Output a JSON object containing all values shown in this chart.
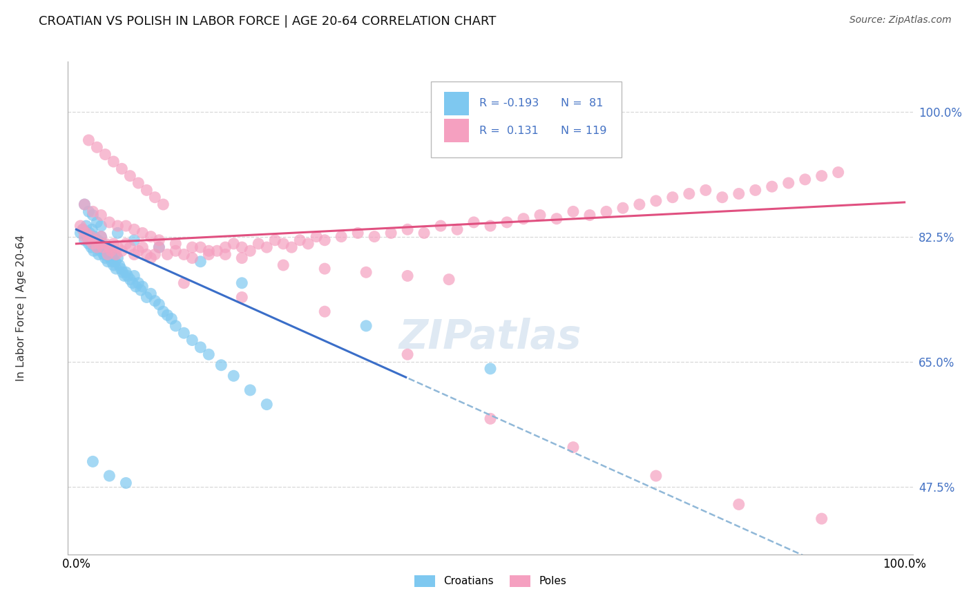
{
  "title": "CROATIAN VS POLISH IN LABOR FORCE | AGE 20-64 CORRELATION CHART",
  "source": "Source: ZipAtlas.com",
  "ylabel": "In Labor Force | Age 20-64",
  "ytick_values": [
    0.475,
    0.65,
    0.825,
    1.0
  ],
  "ytick_labels": [
    "47.5%",
    "65.0%",
    "82.5%",
    "100.0%"
  ],
  "xlim": [
    -0.01,
    1.01
  ],
  "ylim": [
    0.38,
    1.07
  ],
  "croatian_color": "#7ec8f0",
  "polish_color": "#f5a0c0",
  "croatian_trend_color": "#3a6ec8",
  "polish_trend_color": "#e05080",
  "dashed_color": "#90b8d8",
  "croatian_R": -0.193,
  "croatian_N": 81,
  "polish_R": 0.131,
  "polish_N": 119,
  "legend_labels": [
    "Croatians",
    "Poles"
  ],
  "watermark": "ZIPatlas",
  "grid_color": "#d8d8d8",
  "title_fontsize": 13,
  "source_fontsize": 10,
  "tick_fontsize": 12,
  "legend_fontsize": 11,
  "croatian_x": [
    0.005,
    0.008,
    0.01,
    0.012,
    0.013,
    0.015,
    0.016,
    0.018,
    0.019,
    0.02,
    0.021,
    0.022,
    0.023,
    0.025,
    0.026,
    0.027,
    0.028,
    0.029,
    0.03,
    0.031,
    0.032,
    0.033,
    0.034,
    0.035,
    0.036,
    0.037,
    0.038,
    0.04,
    0.041,
    0.042,
    0.043,
    0.044,
    0.045,
    0.046,
    0.047,
    0.048,
    0.05,
    0.052,
    0.054,
    0.056,
    0.058,
    0.06,
    0.062,
    0.065,
    0.068,
    0.07,
    0.072,
    0.075,
    0.078,
    0.08,
    0.085,
    0.09,
    0.095,
    0.1,
    0.105,
    0.11,
    0.115,
    0.12,
    0.13,
    0.14,
    0.15,
    0.16,
    0.175,
    0.19,
    0.21,
    0.23,
    0.01,
    0.015,
    0.02,
    0.025,
    0.03,
    0.05,
    0.07,
    0.1,
    0.15,
    0.2,
    0.35,
    0.5,
    0.02,
    0.04,
    0.06
  ],
  "croatian_y": [
    0.83,
    0.835,
    0.82,
    0.84,
    0.825,
    0.815,
    0.83,
    0.81,
    0.835,
    0.82,
    0.805,
    0.825,
    0.815,
    0.81,
    0.82,
    0.8,
    0.815,
    0.805,
    0.825,
    0.81,
    0.815,
    0.8,
    0.805,
    0.795,
    0.81,
    0.8,
    0.79,
    0.805,
    0.795,
    0.8,
    0.79,
    0.795,
    0.785,
    0.8,
    0.79,
    0.78,
    0.795,
    0.785,
    0.78,
    0.775,
    0.77,
    0.775,
    0.77,
    0.765,
    0.76,
    0.77,
    0.755,
    0.76,
    0.75,
    0.755,
    0.74,
    0.745,
    0.735,
    0.73,
    0.72,
    0.715,
    0.71,
    0.7,
    0.69,
    0.68,
    0.67,
    0.66,
    0.645,
    0.63,
    0.61,
    0.59,
    0.87,
    0.86,
    0.855,
    0.845,
    0.84,
    0.83,
    0.82,
    0.81,
    0.79,
    0.76,
    0.7,
    0.64,
    0.51,
    0.49,
    0.48
  ],
  "polish_x": [
    0.005,
    0.008,
    0.01,
    0.012,
    0.015,
    0.018,
    0.02,
    0.022,
    0.025,
    0.028,
    0.03,
    0.032,
    0.035,
    0.038,
    0.04,
    0.042,
    0.045,
    0.048,
    0.05,
    0.055,
    0.06,
    0.065,
    0.07,
    0.075,
    0.08,
    0.085,
    0.09,
    0.095,
    0.1,
    0.11,
    0.12,
    0.13,
    0.14,
    0.15,
    0.16,
    0.17,
    0.18,
    0.19,
    0.2,
    0.21,
    0.22,
    0.23,
    0.24,
    0.25,
    0.26,
    0.27,
    0.28,
    0.29,
    0.3,
    0.32,
    0.34,
    0.36,
    0.38,
    0.4,
    0.42,
    0.44,
    0.46,
    0.48,
    0.5,
    0.52,
    0.54,
    0.56,
    0.58,
    0.6,
    0.62,
    0.64,
    0.66,
    0.68,
    0.7,
    0.72,
    0.74,
    0.76,
    0.78,
    0.8,
    0.82,
    0.84,
    0.86,
    0.88,
    0.9,
    0.92,
    0.01,
    0.02,
    0.03,
    0.04,
    0.05,
    0.06,
    0.07,
    0.08,
    0.09,
    0.1,
    0.12,
    0.14,
    0.16,
    0.18,
    0.2,
    0.25,
    0.3,
    0.35,
    0.4,
    0.45,
    0.015,
    0.025,
    0.035,
    0.045,
    0.055,
    0.065,
    0.075,
    0.085,
    0.095,
    0.105,
    0.13,
    0.2,
    0.3,
    0.4,
    0.5,
    0.6,
    0.7,
    0.8,
    0.9
  ],
  "polish_y": [
    0.84,
    0.835,
    0.825,
    0.83,
    0.82,
    0.825,
    0.815,
    0.82,
    0.81,
    0.815,
    0.825,
    0.81,
    0.815,
    0.8,
    0.81,
    0.805,
    0.815,
    0.8,
    0.81,
    0.805,
    0.815,
    0.81,
    0.8,
    0.805,
    0.81,
    0.8,
    0.795,
    0.8,
    0.81,
    0.8,
    0.805,
    0.8,
    0.795,
    0.81,
    0.8,
    0.805,
    0.81,
    0.815,
    0.81,
    0.805,
    0.815,
    0.81,
    0.82,
    0.815,
    0.81,
    0.82,
    0.815,
    0.825,
    0.82,
    0.825,
    0.83,
    0.825,
    0.83,
    0.835,
    0.83,
    0.84,
    0.835,
    0.845,
    0.84,
    0.845,
    0.85,
    0.855,
    0.85,
    0.86,
    0.855,
    0.86,
    0.865,
    0.87,
    0.875,
    0.88,
    0.885,
    0.89,
    0.88,
    0.885,
    0.89,
    0.895,
    0.9,
    0.905,
    0.91,
    0.915,
    0.87,
    0.86,
    0.855,
    0.845,
    0.84,
    0.84,
    0.835,
    0.83,
    0.825,
    0.82,
    0.815,
    0.81,
    0.805,
    0.8,
    0.795,
    0.785,
    0.78,
    0.775,
    0.77,
    0.765,
    0.96,
    0.95,
    0.94,
    0.93,
    0.92,
    0.91,
    0.9,
    0.89,
    0.88,
    0.87,
    0.76,
    0.74,
    0.72,
    0.66,
    0.57,
    0.53,
    0.49,
    0.45,
    0.43
  ]
}
